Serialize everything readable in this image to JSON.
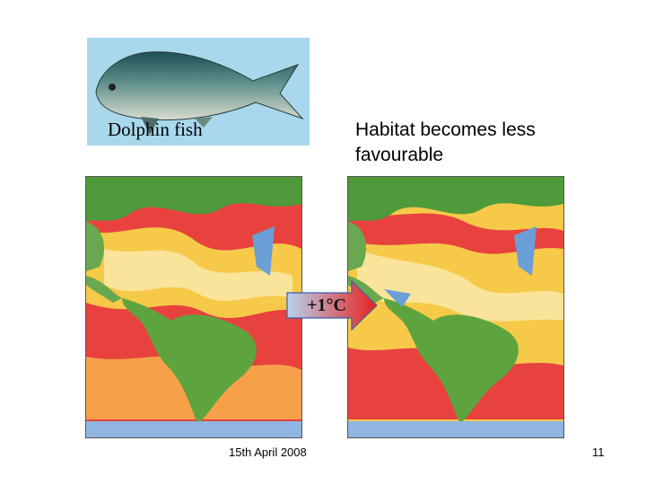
{
  "fish_label": "Dolphin fish",
  "caption": "Habitat becomes less favourable",
  "arrow_label": "+1°C",
  "footer": {
    "date": "15th April 2008",
    "page": "11"
  }
}
